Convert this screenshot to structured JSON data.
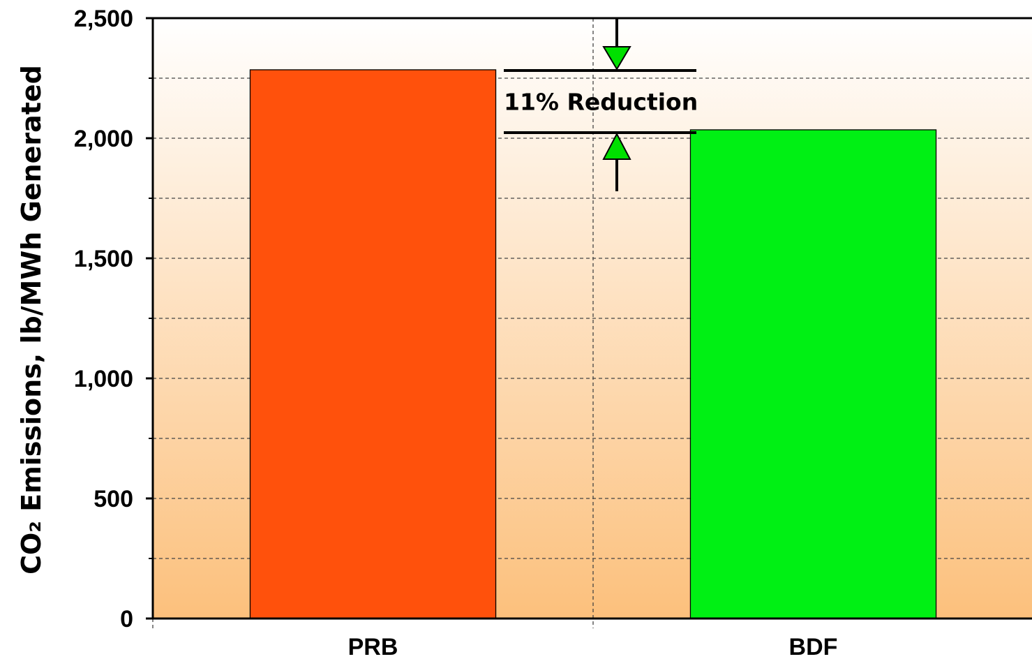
{
  "chart_data": {
    "type": "bar",
    "title": "",
    "xlabel": "",
    "ylabel": "CO₂ Emissions, lb/MWh Generated",
    "categories": [
      "PRB",
      "BDF"
    ],
    "values": [
      2285,
      2035
    ],
    "colors": [
      "#FF510C",
      "#00F014"
    ],
    "ylim": [
      0,
      2500
    ],
    "ytick_values": [
      0,
      500,
      1000,
      1500,
      2000,
      2500
    ],
    "ytick_labels": [
      "0",
      "500",
      "1,000",
      "1,500",
      "2,000",
      "2,500"
    ],
    "minor_grid_values": [
      250,
      750,
      1250,
      1750,
      2250
    ],
    "grid": true,
    "background_gradient": [
      "#FFFFFF",
      "#FCC07C"
    ],
    "annotation": {
      "text": "11% Reduction",
      "from_value": 2285,
      "to_value": 2035,
      "arrow_color": "#00E000"
    }
  }
}
